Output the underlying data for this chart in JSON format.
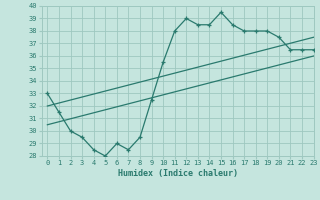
{
  "main_x": [
    0,
    1,
    2,
    3,
    4,
    5,
    6,
    7,
    8,
    9,
    10,
    11,
    12,
    13,
    14,
    15,
    16,
    17,
    18,
    19,
    20,
    21,
    22,
    23
  ],
  "main_y": [
    33.0,
    31.5,
    30.0,
    29.5,
    28.5,
    28.0,
    29.0,
    28.5,
    29.5,
    32.5,
    35.5,
    38.0,
    39.0,
    38.5,
    38.5,
    39.5,
    38.5,
    38.0,
    38.0,
    38.0,
    37.5,
    36.5,
    36.5,
    36.5
  ],
  "line1_x": [
    0,
    23
  ],
  "line1_y": [
    32.0,
    37.5
  ],
  "line2_x": [
    0,
    23
  ],
  "line2_y": [
    30.5,
    36.0
  ],
  "color": "#2a7a6e",
  "bg_color": "#c5e5de",
  "grid_color": "#9ec8c0",
  "xlabel": "Humidex (Indice chaleur)",
  "ylim": [
    28,
    40
  ],
  "xlim": [
    -0.5,
    23
  ],
  "yticks": [
    28,
    29,
    30,
    31,
    32,
    33,
    34,
    35,
    36,
    37,
    38,
    39,
    40
  ],
  "xticks": [
    0,
    1,
    2,
    3,
    4,
    5,
    6,
    7,
    8,
    9,
    10,
    11,
    12,
    13,
    14,
    15,
    16,
    17,
    18,
    19,
    20,
    21,
    22,
    23
  ],
  "tick_fontsize": 5,
  "xlabel_fontsize": 6
}
